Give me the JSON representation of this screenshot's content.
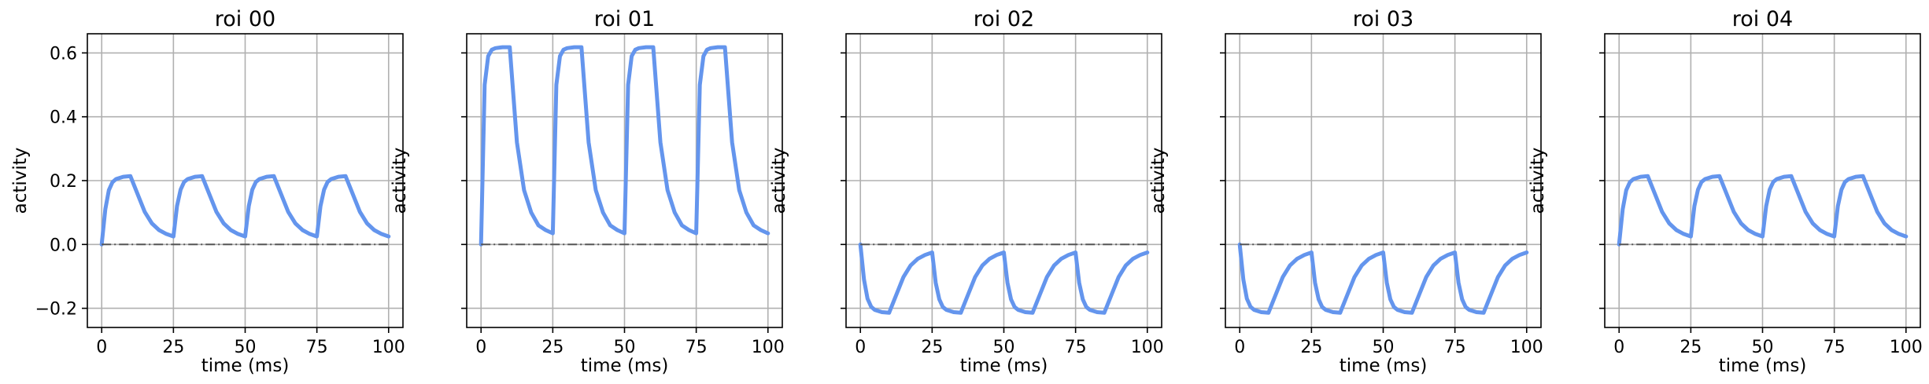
{
  "figure": {
    "line_color": "#6495ED",
    "baseline_color": "#555555",
    "grid": true
  },
  "chart_data": [
    {
      "type": "line",
      "title": "roi 00",
      "xlabel": "time (ms)",
      "ylabel": "activity",
      "xlim": [
        -5,
        105
      ],
      "ylim": [
        -0.26,
        0.66
      ],
      "xticks": [
        "0",
        "25",
        "50",
        "75",
        "100"
      ],
      "yticks": [
        "−0.2",
        "0.0",
        "0.2",
        "0.4",
        "0.6"
      ],
      "series": [
        {
          "role": "activity",
          "x": [
            0,
            1.25,
            2.5,
            3.75,
            5,
            7.5,
            10,
            12.5,
            15,
            17.5,
            20,
            22.5,
            25,
            26.25,
            27.5,
            28.75,
            30,
            32.5,
            35,
            37.5,
            40,
            42.5,
            45,
            47.5,
            50,
            51.25,
            52.5,
            53.75,
            55,
            57.5,
            60,
            62.5,
            65,
            67.5,
            70,
            72.5,
            75,
            76.25,
            77.5,
            78.75,
            80,
            82.5,
            85,
            87.5,
            90,
            92.5,
            95,
            97.5,
            100
          ],
          "y": [
            0.0,
            0.11,
            0.17,
            0.195,
            0.205,
            0.212,
            0.214,
            0.158,
            0.102,
            0.066,
            0.045,
            0.033,
            0.025,
            0.12,
            0.172,
            0.196,
            0.205,
            0.212,
            0.214,
            0.158,
            0.102,
            0.066,
            0.045,
            0.033,
            0.025,
            0.12,
            0.172,
            0.196,
            0.205,
            0.212,
            0.214,
            0.158,
            0.102,
            0.066,
            0.045,
            0.033,
            0.025,
            0.12,
            0.172,
            0.196,
            0.205,
            0.212,
            0.214,
            0.158,
            0.102,
            0.066,
            0.045,
            0.033,
            0.025
          ]
        },
        {
          "role": "baseline",
          "x": [
            0,
            100
          ],
          "y": [
            0,
            0
          ]
        }
      ]
    },
    {
      "type": "line",
      "title": "roi 01",
      "xlabel": "time (ms)",
      "ylabel": "activity",
      "xlim": [
        -5,
        105
      ],
      "ylim": [
        -0.26,
        0.66
      ],
      "xticks": [
        "0",
        "25",
        "50",
        "75",
        "100"
      ],
      "yticks": [],
      "series": [
        {
          "role": "activity",
          "x": [
            0,
            1.25,
            2.5,
            3.75,
            5,
            7.5,
            10,
            12.5,
            15,
            17.5,
            20,
            22.5,
            25,
            26.25,
            27.5,
            28.75,
            30,
            32.5,
            35,
            37.5,
            40,
            42.5,
            45,
            47.5,
            50,
            51.25,
            52.5,
            53.75,
            55,
            57.5,
            60,
            62.5,
            65,
            67.5,
            70,
            72.5,
            75,
            76.25,
            77.5,
            78.75,
            80,
            82.5,
            85,
            87.5,
            90,
            92.5,
            95,
            97.5,
            100
          ],
          "y": [
            0.0,
            0.5,
            0.59,
            0.61,
            0.615,
            0.618,
            0.618,
            0.32,
            0.17,
            0.1,
            0.06,
            0.045,
            0.035,
            0.5,
            0.59,
            0.61,
            0.615,
            0.618,
            0.618,
            0.32,
            0.17,
            0.1,
            0.06,
            0.045,
            0.035,
            0.5,
            0.59,
            0.61,
            0.615,
            0.618,
            0.618,
            0.32,
            0.17,
            0.1,
            0.06,
            0.045,
            0.035,
            0.5,
            0.59,
            0.61,
            0.615,
            0.618,
            0.618,
            0.32,
            0.17,
            0.1,
            0.06,
            0.045,
            0.035
          ]
        },
        {
          "role": "baseline",
          "x": [
            0,
            100
          ],
          "y": [
            0,
            0
          ]
        }
      ]
    },
    {
      "type": "line",
      "title": "roi 02",
      "xlabel": "time (ms)",
      "ylabel": "activity",
      "xlim": [
        -5,
        105
      ],
      "ylim": [
        -0.26,
        0.66
      ],
      "xticks": [
        "0",
        "25",
        "50",
        "75",
        "100"
      ],
      "yticks": [],
      "series": [
        {
          "role": "activity",
          "x": [
            0,
            1.25,
            2.5,
            3.75,
            5,
            7.5,
            10,
            12.5,
            15,
            17.5,
            20,
            22.5,
            25,
            26.25,
            27.5,
            28.75,
            30,
            32.5,
            35,
            37.5,
            40,
            42.5,
            45,
            47.5,
            50,
            51.25,
            52.5,
            53.75,
            55,
            57.5,
            60,
            62.5,
            65,
            67.5,
            70,
            72.5,
            75,
            76.25,
            77.5,
            78.75,
            80,
            82.5,
            85,
            87.5,
            90,
            92.5,
            95,
            97.5,
            100
          ],
          "y": [
            0.0,
            -0.11,
            -0.17,
            -0.195,
            -0.205,
            -0.212,
            -0.214,
            -0.158,
            -0.102,
            -0.066,
            -0.045,
            -0.033,
            -0.025,
            -0.12,
            -0.172,
            -0.196,
            -0.205,
            -0.212,
            -0.214,
            -0.158,
            -0.102,
            -0.066,
            -0.045,
            -0.033,
            -0.025,
            -0.12,
            -0.172,
            -0.196,
            -0.205,
            -0.212,
            -0.214,
            -0.158,
            -0.102,
            -0.066,
            -0.045,
            -0.033,
            -0.025,
            -0.12,
            -0.172,
            -0.196,
            -0.205,
            -0.212,
            -0.214,
            -0.158,
            -0.102,
            -0.066,
            -0.045,
            -0.033,
            -0.025
          ]
        },
        {
          "role": "baseline",
          "x": [
            0,
            100
          ],
          "y": [
            0,
            0
          ]
        }
      ]
    },
    {
      "type": "line",
      "title": "roi 03",
      "xlabel": "time (ms)",
      "ylabel": "activity",
      "xlim": [
        -5,
        105
      ],
      "ylim": [
        -0.26,
        0.66
      ],
      "xticks": [
        "0",
        "25",
        "50",
        "75",
        "100"
      ],
      "yticks": [],
      "series": [
        {
          "role": "activity",
          "x": [
            0,
            1.25,
            2.5,
            3.75,
            5,
            7.5,
            10,
            12.5,
            15,
            17.5,
            20,
            22.5,
            25,
            26.25,
            27.5,
            28.75,
            30,
            32.5,
            35,
            37.5,
            40,
            42.5,
            45,
            47.5,
            50,
            51.25,
            52.5,
            53.75,
            55,
            57.5,
            60,
            62.5,
            65,
            67.5,
            70,
            72.5,
            75,
            76.25,
            77.5,
            78.75,
            80,
            82.5,
            85,
            87.5,
            90,
            92.5,
            95,
            97.5,
            100
          ],
          "y": [
            0.0,
            -0.11,
            -0.17,
            -0.195,
            -0.205,
            -0.212,
            -0.214,
            -0.158,
            -0.102,
            -0.066,
            -0.045,
            -0.033,
            -0.025,
            -0.12,
            -0.172,
            -0.196,
            -0.205,
            -0.212,
            -0.214,
            -0.158,
            -0.102,
            -0.066,
            -0.045,
            -0.033,
            -0.025,
            -0.12,
            -0.172,
            -0.196,
            -0.205,
            -0.212,
            -0.214,
            -0.158,
            -0.102,
            -0.066,
            -0.045,
            -0.033,
            -0.025,
            -0.12,
            -0.172,
            -0.196,
            -0.205,
            -0.212,
            -0.214,
            -0.158,
            -0.102,
            -0.066,
            -0.045,
            -0.033,
            -0.025
          ]
        },
        {
          "role": "baseline",
          "x": [
            0,
            100
          ],
          "y": [
            0,
            0
          ]
        }
      ]
    },
    {
      "type": "line",
      "title": "roi 04",
      "xlabel": "time (ms)",
      "ylabel": "activity",
      "xlim": [
        -5,
        105
      ],
      "ylim": [
        -0.26,
        0.66
      ],
      "xticks": [
        "0",
        "25",
        "50",
        "75",
        "100"
      ],
      "yticks": [],
      "series": [
        {
          "role": "activity",
          "x": [
            0,
            1.25,
            2.5,
            3.75,
            5,
            7.5,
            10,
            12.5,
            15,
            17.5,
            20,
            22.5,
            25,
            26.25,
            27.5,
            28.75,
            30,
            32.5,
            35,
            37.5,
            40,
            42.5,
            45,
            47.5,
            50,
            51.25,
            52.5,
            53.75,
            55,
            57.5,
            60,
            62.5,
            65,
            67.5,
            70,
            72.5,
            75,
            76.25,
            77.5,
            78.75,
            80,
            82.5,
            85,
            87.5,
            90,
            92.5,
            95,
            97.5,
            100
          ],
          "y": [
            0.0,
            0.11,
            0.17,
            0.195,
            0.205,
            0.212,
            0.214,
            0.158,
            0.102,
            0.066,
            0.045,
            0.033,
            0.025,
            0.12,
            0.172,
            0.196,
            0.205,
            0.212,
            0.214,
            0.158,
            0.102,
            0.066,
            0.045,
            0.033,
            0.025,
            0.12,
            0.172,
            0.196,
            0.205,
            0.212,
            0.214,
            0.158,
            0.102,
            0.066,
            0.045,
            0.033,
            0.025,
            0.12,
            0.172,
            0.196,
            0.205,
            0.212,
            0.214,
            0.158,
            0.102,
            0.066,
            0.045,
            0.033,
            0.025
          ]
        },
        {
          "role": "baseline",
          "x": [
            0,
            100
          ],
          "y": [
            0,
            0
          ]
        }
      ]
    }
  ]
}
